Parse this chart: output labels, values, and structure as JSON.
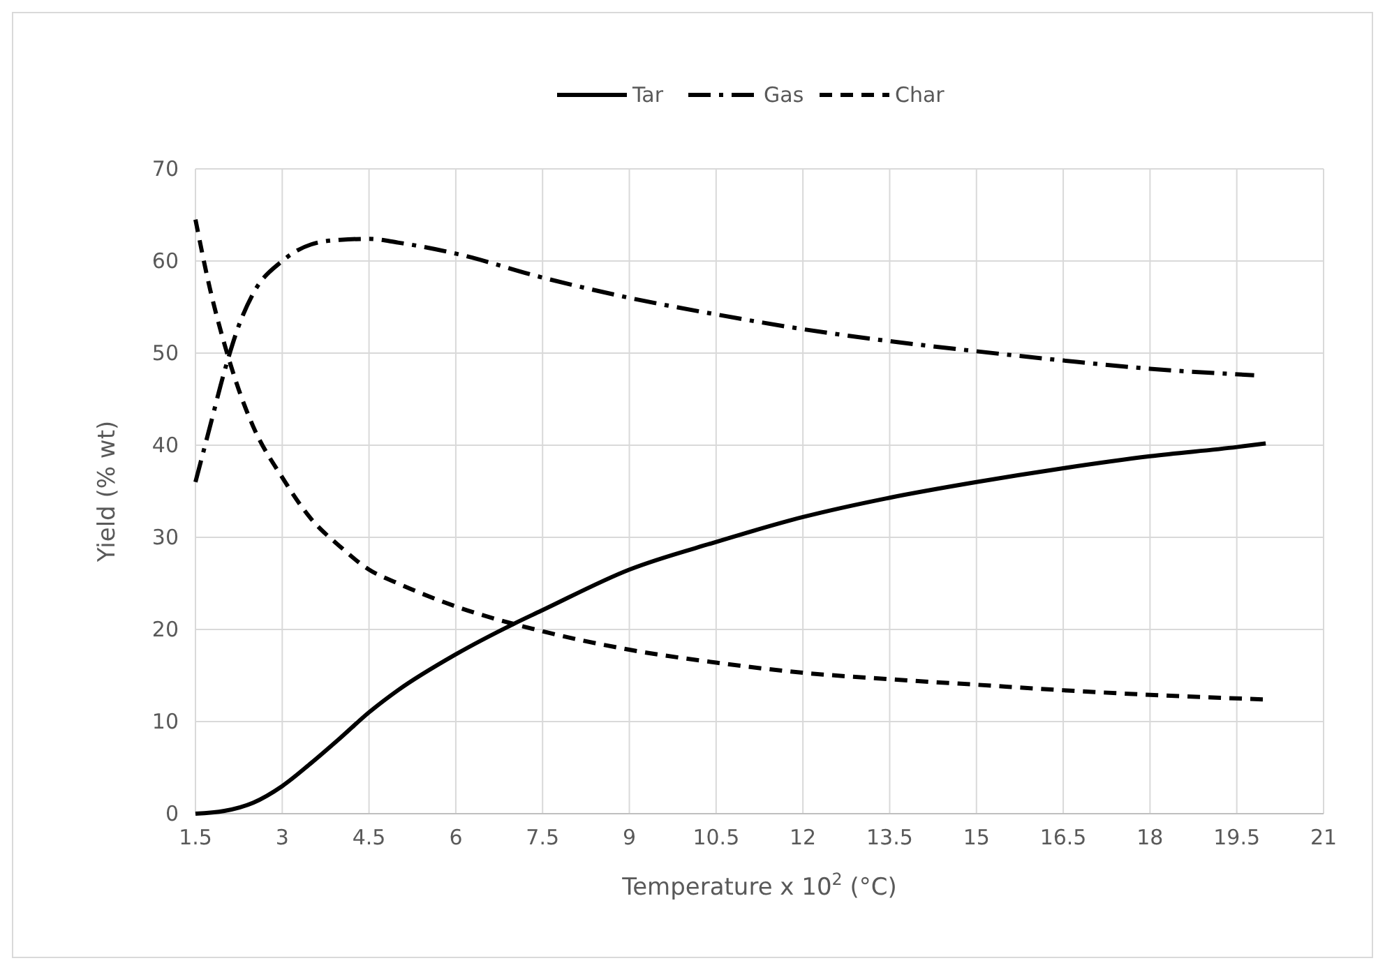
{
  "chart_data": {
    "type": "line",
    "xlabel": "Temperature x 10$^{2}$ (°C)",
    "ylabel": "Yield  (% wt)",
    "xlim": [
      1.5,
      21
    ],
    "xticks": [
      1.5,
      3,
      4.5,
      6,
      7.5,
      9,
      10.5,
      12,
      13.5,
      15,
      16.5,
      18,
      19.5,
      21
    ],
    "ylim": [
      0,
      70
    ],
    "yticks": [
      0,
      10,
      20,
      30,
      40,
      50,
      60,
      70
    ],
    "grid": true,
    "legend": "top",
    "series": [
      {
        "name": "Tar",
        "color": "#000000",
        "line_style": "solid",
        "x": [
          1.5,
          2,
          2.5,
          3,
          3.5,
          4,
          4.5,
          5,
          6,
          7,
          7.5,
          9,
          10.5,
          12,
          13.5,
          15,
          16.5,
          18,
          19.5,
          20
        ],
        "values": [
          0,
          0.3,
          1.2,
          3,
          5.5,
          8.2,
          11,
          13.4,
          17.3,
          20.6,
          22.1,
          26.5,
          29.5,
          32.2,
          34.3,
          36,
          37.5,
          38.8,
          39.8,
          40.2
        ]
      },
      {
        "name": "Gas",
        "color": "#000000",
        "line_style": "dashdot",
        "x": [
          1.5,
          1.75,
          2,
          2.25,
          2.5,
          3,
          3.5,
          4,
          4.5,
          5,
          6,
          7.5,
          9,
          10.5,
          12,
          13.5,
          15,
          16.5,
          18,
          19.8
        ],
        "values": [
          36,
          42,
          48,
          53,
          56.5,
          60,
          61.8,
          62.3,
          62.4,
          62,
          60.8,
          58.2,
          56,
          54.2,
          52.6,
          51.3,
          50.2,
          49.2,
          48.3,
          47.6
        ]
      },
      {
        "name": "Char",
        "color": "#000000",
        "line_style": "dashed",
        "x": [
          1.5,
          1.75,
          2,
          2.25,
          2.5,
          3,
          3.5,
          4,
          4.5,
          5,
          6,
          7.5,
          9,
          10.5,
          12,
          13.5,
          15,
          16.5,
          18,
          20
        ],
        "values": [
          64.5,
          57,
          51,
          46,
          42,
          36.5,
          32,
          29,
          26.5,
          25,
          22.5,
          19.8,
          17.8,
          16.4,
          15.3,
          14.6,
          14,
          13.4,
          12.9,
          12.4
        ]
      }
    ]
  }
}
